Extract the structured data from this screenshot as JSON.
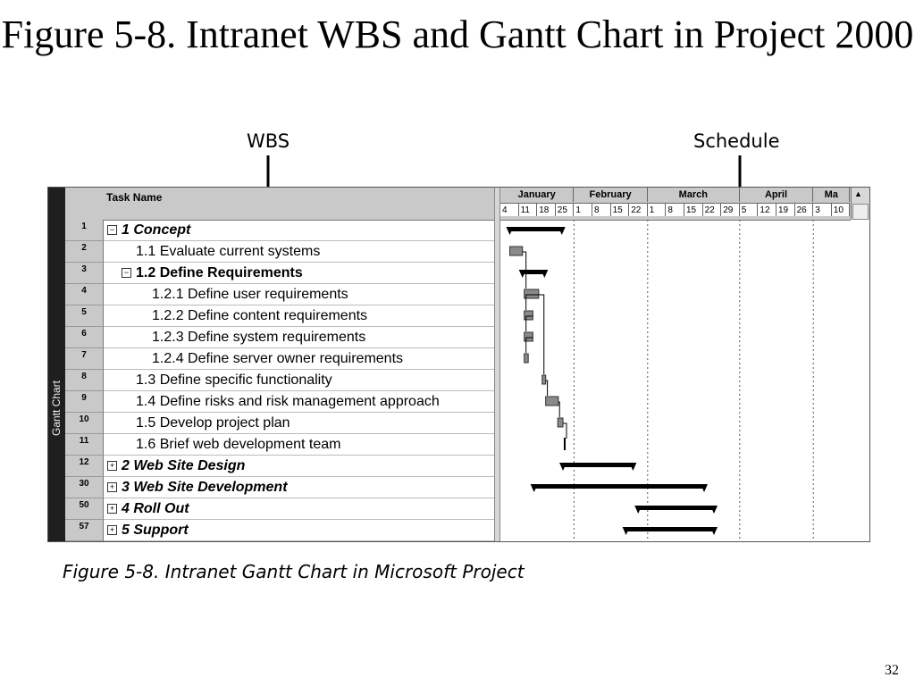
{
  "slide": {
    "title": "Figure 5-8. Intranet WBS and Gantt Chart in Project 2000",
    "caption": "Figure 5-8. Intranet Gantt Chart in Microsoft Project",
    "page_number": "32"
  },
  "callouts": {
    "wbs": "WBS",
    "schedule": "Schedule"
  },
  "project": {
    "view_label": "Gantt Chart",
    "column_header": "Task Name",
    "months": [
      "January",
      "February",
      "March",
      "April",
      "Ma"
    ],
    "weeks": [
      "4",
      "11",
      "18",
      "25",
      "1",
      "8",
      "15",
      "22",
      "1",
      "8",
      "15",
      "22",
      "29",
      "5",
      "12",
      "19",
      "26",
      "3",
      "10"
    ],
    "tasks": [
      {
        "id": "1",
        "name": "1 Concept",
        "indent": 0,
        "summary": true,
        "italic": true,
        "toggle": "minus",
        "bar": {
          "kind": "summary",
          "start": 1,
          "end": 10
        }
      },
      {
        "id": "2",
        "name": "1.1 Evaluate current systems",
        "indent": 1,
        "summary": false,
        "italic": false,
        "bar": {
          "kind": "task",
          "start": 1,
          "end": 3.2
        }
      },
      {
        "id": "3",
        "name": "1.2 Define Requirements",
        "indent": 1,
        "summary": true,
        "italic": false,
        "toggle": "minus",
        "bar": {
          "kind": "summary",
          "start": 3.2,
          "end": 7
        }
      },
      {
        "id": "4",
        "name": "1.2.1 Define user requirements",
        "indent": 2,
        "summary": false,
        "italic": false,
        "bar": {
          "kind": "task",
          "start": 3.5,
          "end": 6
        }
      },
      {
        "id": "5",
        "name": "1.2.2 Define content requirements",
        "indent": 2,
        "summary": false,
        "italic": false,
        "bar": {
          "kind": "task",
          "start": 3.5,
          "end": 5
        }
      },
      {
        "id": "6",
        "name": "1.2.3 Define system requirements",
        "indent": 2,
        "summary": false,
        "italic": false,
        "bar": {
          "kind": "task",
          "start": 3.5,
          "end": 5
        }
      },
      {
        "id": "7",
        "name": "1.2.4 Define server owner requirements",
        "indent": 2,
        "summary": false,
        "italic": false,
        "bar": {
          "kind": "task",
          "start": 3.5,
          "end": 4.2
        }
      },
      {
        "id": "8",
        "name": "1.3 Define specific functionality",
        "indent": 1,
        "summary": false,
        "italic": false,
        "bar": {
          "kind": "task",
          "start": 6.6,
          "end": 7.2
        }
      },
      {
        "id": "9",
        "name": "1.4 Define risks and risk management approach",
        "indent": 1,
        "summary": false,
        "italic": false,
        "bar": {
          "kind": "task",
          "start": 7.2,
          "end": 9.4
        }
      },
      {
        "id": "10",
        "name": "1.5 Develop project plan",
        "indent": 1,
        "summary": false,
        "italic": false,
        "bar": {
          "kind": "task",
          "start": 9.3,
          "end": 10.2
        }
      },
      {
        "id": "11",
        "name": "1.6 Brief web development team",
        "indent": 1,
        "summary": false,
        "italic": false,
        "bar": {
          "kind": "milestone",
          "start": 10.5,
          "end": 10.5
        }
      },
      {
        "id": "12",
        "name": "2 Web Site Design",
        "indent": 0,
        "summary": true,
        "italic": true,
        "toggle": "plus",
        "bar": {
          "kind": "summary",
          "start": 10.2,
          "end": 22.3
        }
      },
      {
        "id": "30",
        "name": "3 Web Site Development",
        "indent": 0,
        "summary": true,
        "italic": true,
        "toggle": "plus",
        "bar": {
          "kind": "summary",
          "start": 5.2,
          "end": 34.6
        }
      },
      {
        "id": "50",
        "name": "4 Roll Out",
        "indent": 0,
        "summary": true,
        "italic": true,
        "toggle": "plus",
        "bar": {
          "kind": "summary",
          "start": 23.2,
          "end": 36.3
        }
      },
      {
        "id": "57",
        "name": "5 Support",
        "indent": 0,
        "summary": true,
        "italic": true,
        "toggle": "plus",
        "bar": {
          "kind": "summary",
          "start": 21.1,
          "end": 36.3
        }
      }
    ]
  },
  "colors": {
    "summary_bar": "#000000",
    "task_bar": "#8a8a8a",
    "id_column": "#c9c9c9",
    "view_strip": "#1f1f1f"
  }
}
